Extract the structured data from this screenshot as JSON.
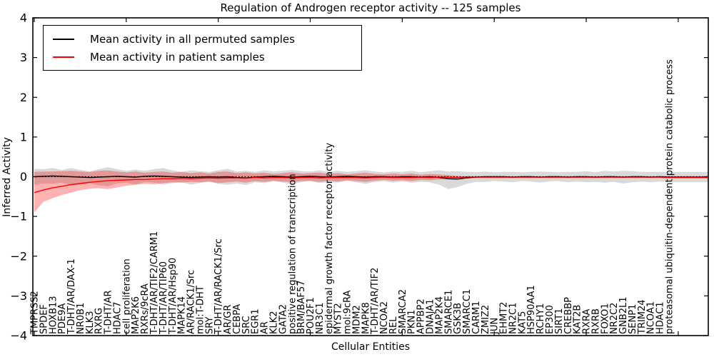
{
  "figure": {
    "background": "#ffffff",
    "axis_color": "#000000"
  },
  "chart_data": {
    "type": "line",
    "title": "Regulation of Androgen receptor activity -- 125 samples",
    "xlabel": "Cellular Entities",
    "ylabel": "Inferred Activity",
    "ylim": [
      -4,
      4
    ],
    "yticks": [
      4,
      3,
      2,
      1,
      0,
      -1,
      -2,
      -3,
      -4
    ],
    "ytick_labels": [
      "4",
      "3",
      "2",
      "1",
      "0",
      "−1",
      "−2",
      "−3",
      "−4"
    ],
    "xtick_every": 10,
    "grid": false,
    "zero_line_style": "dotted",
    "legend_position": "upper left",
    "categories": [
      "TMPRSS2",
      "SPDEF",
      "HOXB13",
      "PDE9A",
      "T-DHT/AR/DAX-1",
      "NR0B1",
      "KLK3",
      "RXRG",
      "T-DHT/AR",
      "HDAC7",
      "cell proliferation",
      "MAP2K6",
      "RXRs/9cRA",
      "T-DHT/AR/TIF2/CARM1",
      "T-DHT/AR/TIP60",
      "T-DHT/AR/Hsp90",
      "MAPK14",
      "AR/RACK1/Src",
      "mol:T-DHT",
      "SRY",
      "T-DHT/AR/RACK1/Src",
      "AR/GR",
      "CEBPA",
      "SRC",
      "EGR1",
      "AR",
      "KLK2",
      "GATA2",
      "positive regulation of transcription",
      "BRM/BAF57",
      "POU2F1",
      "NR3C1",
      "epidermal growth factor receptor activity",
      "MYST2",
      "mol:9cRA",
      "MDM2",
      "MAPK8",
      "T-DHT/AR/TIF2",
      "NCOA2",
      "REL",
      "SMARCA2",
      "PKN1",
      "APPBP2",
      "DNAJA1",
      "MAP2K4",
      "SMARCE1",
      "GSK3B",
      "SMARCC1",
      "CARM1",
      "ZMIZ2",
      "JUN",
      "EHMT2",
      "NR2C1",
      "KAT5",
      "HSP90AA1",
      "RCHY1",
      "EP300",
      "SIRT1",
      "CREBBP",
      "KAT2B",
      "RXRA",
      "RXRB",
      "FOXO1",
      "NR2C2",
      "GNB2L1",
      "SENP1",
      "TRIM24",
      "NCOA1",
      "HDAC1",
      "proteasomal ubiquitin-dependent protein catabolic process"
    ],
    "series": [
      {
        "name": "Mean activity in all permuted samples",
        "color": "#000000",
        "band_color": "#888888",
        "band_opacity": 0.32,
        "values": [
          0.0,
          0.01,
          0.02,
          0.01,
          0.0,
          -0.01,
          -0.02,
          -0.01,
          0.0,
          0.01,
          0.0,
          -0.01,
          0.01,
          0.02,
          0.01,
          0.0,
          -0.01,
          -0.02,
          -0.01,
          0.0,
          -0.01,
          0.0,
          -0.02,
          -0.03,
          -0.01,
          0.0,
          0.01,
          0.0,
          -0.01,
          0.0,
          0.01,
          0.0,
          -0.01,
          0.0,
          0.01,
          0.0,
          -0.01,
          0.0,
          0.0,
          -0.01,
          0.0,
          0.0,
          -0.01,
          0.0,
          -0.02,
          -0.05,
          -0.06,
          -0.03,
          -0.01,
          0.0,
          0.0,
          0.0,
          -0.01,
          0.0,
          0.0,
          -0.01,
          0.0,
          0.0,
          -0.01,
          0.0,
          0.0,
          -0.01,
          0.0,
          0.0,
          -0.01,
          0.0,
          0.0,
          -0.01,
          0.0,
          -0.01
        ],
        "band_lo": [
          -0.2,
          -0.17,
          -0.18,
          -0.15,
          -0.22,
          -0.19,
          -0.17,
          -0.21,
          -0.24,
          -0.17,
          -0.15,
          -0.2,
          -0.13,
          -0.15,
          -0.2,
          -0.16,
          -0.14,
          -0.2,
          -0.16,
          -0.12,
          -0.18,
          -0.2,
          -0.17,
          -0.21,
          -0.14,
          -0.16,
          -0.11,
          -0.15,
          -0.19,
          -0.14,
          -0.11,
          -0.16,
          -0.14,
          -0.15,
          -0.1,
          -0.14,
          -0.18,
          -0.13,
          -0.11,
          -0.15,
          -0.12,
          -0.15,
          -0.13,
          -0.14,
          -0.2,
          -0.31,
          -0.26,
          -0.18,
          -0.13,
          -0.13,
          -0.11,
          -0.12,
          -0.14,
          -0.11,
          -0.12,
          -0.15,
          -0.12,
          -0.11,
          -0.14,
          -0.12,
          -0.14,
          -0.13,
          -0.15,
          -0.13,
          -0.17,
          -0.14,
          -0.12,
          -0.14,
          -0.12,
          -0.14
        ],
        "band_hi": [
          0.2,
          0.19,
          0.22,
          0.17,
          0.22,
          0.17,
          0.13,
          0.19,
          0.24,
          0.19,
          0.15,
          0.18,
          0.15,
          0.19,
          0.22,
          0.16,
          0.12,
          0.16,
          0.14,
          0.12,
          0.16,
          0.2,
          0.13,
          0.15,
          0.12,
          0.16,
          0.13,
          0.15,
          0.17,
          0.14,
          0.13,
          0.16,
          0.12,
          0.15,
          0.12,
          0.14,
          0.16,
          0.13,
          0.11,
          0.13,
          0.12,
          0.15,
          0.11,
          0.14,
          0.16,
          0.13,
          0.14,
          0.12,
          0.11,
          0.13,
          0.11,
          0.12,
          0.12,
          0.11,
          0.12,
          0.13,
          0.12,
          0.11,
          0.12,
          0.12,
          0.14,
          0.11,
          0.15,
          0.13,
          0.15,
          0.14,
          0.12,
          0.12,
          0.12,
          0.12
        ]
      },
      {
        "name": "Mean activity in patient samples",
        "color": "#ff0000",
        "band_color": "#ff0000",
        "band_opacity": 0.3,
        "values": [
          -0.4,
          -0.33,
          -0.28,
          -0.24,
          -0.2,
          -0.17,
          -0.14,
          -0.12,
          -0.1,
          -0.09,
          -0.08,
          -0.07,
          -0.07,
          -0.06,
          -0.05,
          -0.05,
          -0.04,
          -0.05,
          -0.04,
          -0.03,
          -0.04,
          -0.03,
          -0.03,
          -0.04,
          -0.02,
          -0.03,
          -0.02,
          -0.02,
          -0.03,
          -0.02,
          -0.02,
          -0.03,
          -0.02,
          -0.02,
          -0.02,
          -0.02,
          -0.03,
          -0.02,
          -0.01,
          -0.02,
          -0.02,
          -0.02,
          -0.01,
          -0.02,
          -0.01,
          -0.01,
          -0.02,
          -0.01,
          -0.01,
          -0.01,
          -0.01,
          -0.01,
          -0.01,
          -0.01,
          -0.01,
          -0.01,
          -0.01,
          -0.01,
          -0.01,
          -0.01,
          -0.01,
          -0.01,
          -0.01,
          -0.01,
          -0.01,
          -0.01,
          -0.01,
          -0.01,
          -0.01,
          -0.02
        ],
        "band_lo": [
          -0.9,
          -0.63,
          -0.54,
          -0.46,
          -0.4,
          -0.34,
          -0.3,
          -0.29,
          -0.31,
          -0.27,
          -0.23,
          -0.2,
          -0.18,
          -0.19,
          -0.16,
          -0.14,
          -0.15,
          -0.13,
          -0.14,
          -0.12,
          -0.16,
          -0.14,
          -0.12,
          -0.15,
          -0.11,
          -0.13,
          -0.1,
          -0.12,
          -0.14,
          -0.11,
          -0.1,
          -0.13,
          -0.1,
          -0.12,
          -0.09,
          -0.11,
          -0.13,
          -0.1,
          -0.08,
          -0.1,
          -0.09,
          -0.11,
          -0.08,
          -0.09,
          -0.07,
          -0.06,
          -0.04,
          -0.03,
          -0.03,
          -0.03,
          -0.03,
          -0.03,
          -0.03,
          -0.03,
          -0.03,
          -0.03,
          -0.03,
          -0.03,
          -0.03,
          -0.03,
          -0.03,
          -0.03,
          -0.03,
          -0.03,
          -0.03,
          -0.03,
          -0.03,
          -0.03,
          -0.03,
          -0.04
        ],
        "band_hi": [
          0.12,
          0.13,
          0.13,
          0.14,
          0.15,
          0.13,
          0.12,
          0.15,
          0.16,
          0.13,
          0.11,
          0.13,
          0.1,
          0.12,
          0.13,
          0.1,
          0.12,
          0.09,
          0.11,
          0.08,
          0.12,
          0.13,
          0.09,
          0.11,
          0.08,
          0.1,
          0.07,
          0.09,
          0.11,
          0.08,
          0.09,
          0.1,
          0.07,
          0.09,
          0.06,
          0.08,
          0.1,
          0.07,
          0.06,
          0.08,
          0.06,
          0.08,
          0.05,
          0.07,
          0.06,
          0.04,
          0.02,
          0.01,
          0.01,
          0.01,
          0.01,
          0.01,
          0.01,
          0.01,
          0.01,
          0.01,
          0.01,
          0.01,
          0.01,
          0.01,
          0.01,
          0.01,
          0.01,
          0.01,
          0.01,
          0.01,
          0.01,
          0.01,
          0.01,
          0.01
        ]
      }
    ]
  }
}
